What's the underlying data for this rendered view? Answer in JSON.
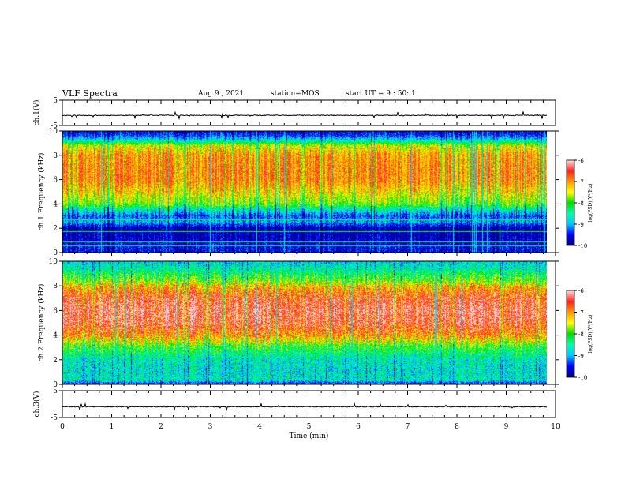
{
  "header": {
    "title": "VLF Spectra",
    "date": "Aug.9 , 2021",
    "station": "station=MOS",
    "start": "start UT = 9 : 50: 1"
  },
  "chart_data": [
    {
      "id": "ch1-waveform",
      "type": "line",
      "ylabel": "ch.1(V)",
      "ylim": [
        -5,
        5
      ],
      "yticks": [
        5,
        -5
      ],
      "xlim": [
        0,
        10
      ],
      "baseline": -1,
      "note": "near-constant waveform trace with sparse small spikes"
    },
    {
      "id": "ch1-spectrogram",
      "type": "heatmap",
      "ylabel": "ch.1 Frequency (kHz)",
      "ylim": [
        0,
        10
      ],
      "yticks": [
        0,
        2,
        4,
        6,
        8,
        10
      ],
      "xlim": [
        0,
        9.83
      ],
      "colorbar": {
        "label": "log(PSD)(V²/Hz)",
        "range": [
          -10,
          -6
        ],
        "ticks": [
          -6,
          -7,
          -8,
          -9,
          -10
        ]
      },
      "profile_khz": [
        0,
        0.5,
        1,
        2,
        2.5,
        3,
        3.5,
        4,
        5,
        6,
        7,
        8,
        8.8,
        9.3,
        9.7,
        10
      ],
      "profile_log_psd": [
        -9.6,
        -9.5,
        -9.7,
        -9.8,
        -9.0,
        -9.3,
        -8.6,
        -7.8,
        -7.3,
        -6.9,
        -6.9,
        -7.0,
        -7.5,
        -8.8,
        -9.4,
        -9.6
      ]
    },
    {
      "id": "ch2-spectrogram",
      "type": "heatmap",
      "ylabel": "ch.2 Frequency (kHz)",
      "ylim": [
        0,
        10
      ],
      "yticks": [
        0,
        2,
        4,
        6,
        8,
        10
      ],
      "xlim": [
        0,
        9.83
      ],
      "colorbar": {
        "label": "log(PSD)(V²/Hz)",
        "range": [
          -10,
          -6
        ],
        "ticks": [
          -6,
          -7,
          -8,
          -9,
          -10
        ]
      },
      "profile_khz": [
        0,
        0.3,
        1,
        2,
        3,
        4,
        5,
        6,
        7,
        7.8,
        8.5,
        9,
        9.5,
        10
      ],
      "profile_log_psd": [
        -9.6,
        -8.6,
        -8.7,
        -8.6,
        -8.0,
        -6.9,
        -6.4,
        -6.3,
        -6.5,
        -7.0,
        -7.8,
        -8.2,
        -8.6,
        -8.8
      ]
    },
    {
      "id": "ch3-waveform",
      "type": "line",
      "ylabel": "ch.3(V)",
      "ylim": [
        -5,
        5
      ],
      "yticks": [
        5,
        -5
      ],
      "xlim": [
        0,
        10
      ],
      "baseline": -1,
      "note": "near-constant waveform trace with sparse small spikes"
    }
  ],
  "xaxis": {
    "label": "Time (min)",
    "range": [
      0,
      10
    ],
    "ticks": [
      "0",
      "1",
      "2",
      "3",
      "4",
      "5",
      "6",
      "7",
      "8",
      "9",
      "10"
    ]
  },
  "colors": {
    "scale": [
      "#000080",
      "#0000ff",
      "#00c8ff",
      "#00ffaa",
      "#00dd00",
      "#ffff00",
      "#ff9900",
      "#ff2020",
      "#ffd8d8"
    ]
  }
}
